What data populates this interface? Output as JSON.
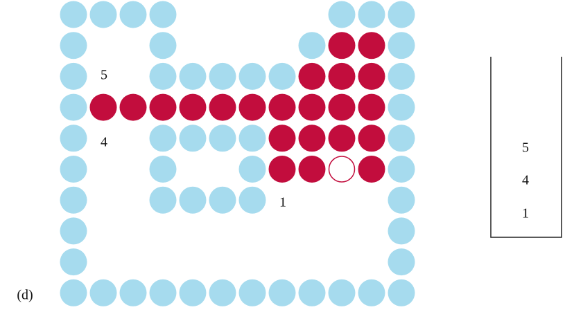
{
  "caption": "(d)",
  "maze_labels": [
    "5",
    "4",
    "1"
  ],
  "stack": [
    "5",
    "4",
    "1"
  ]
}
